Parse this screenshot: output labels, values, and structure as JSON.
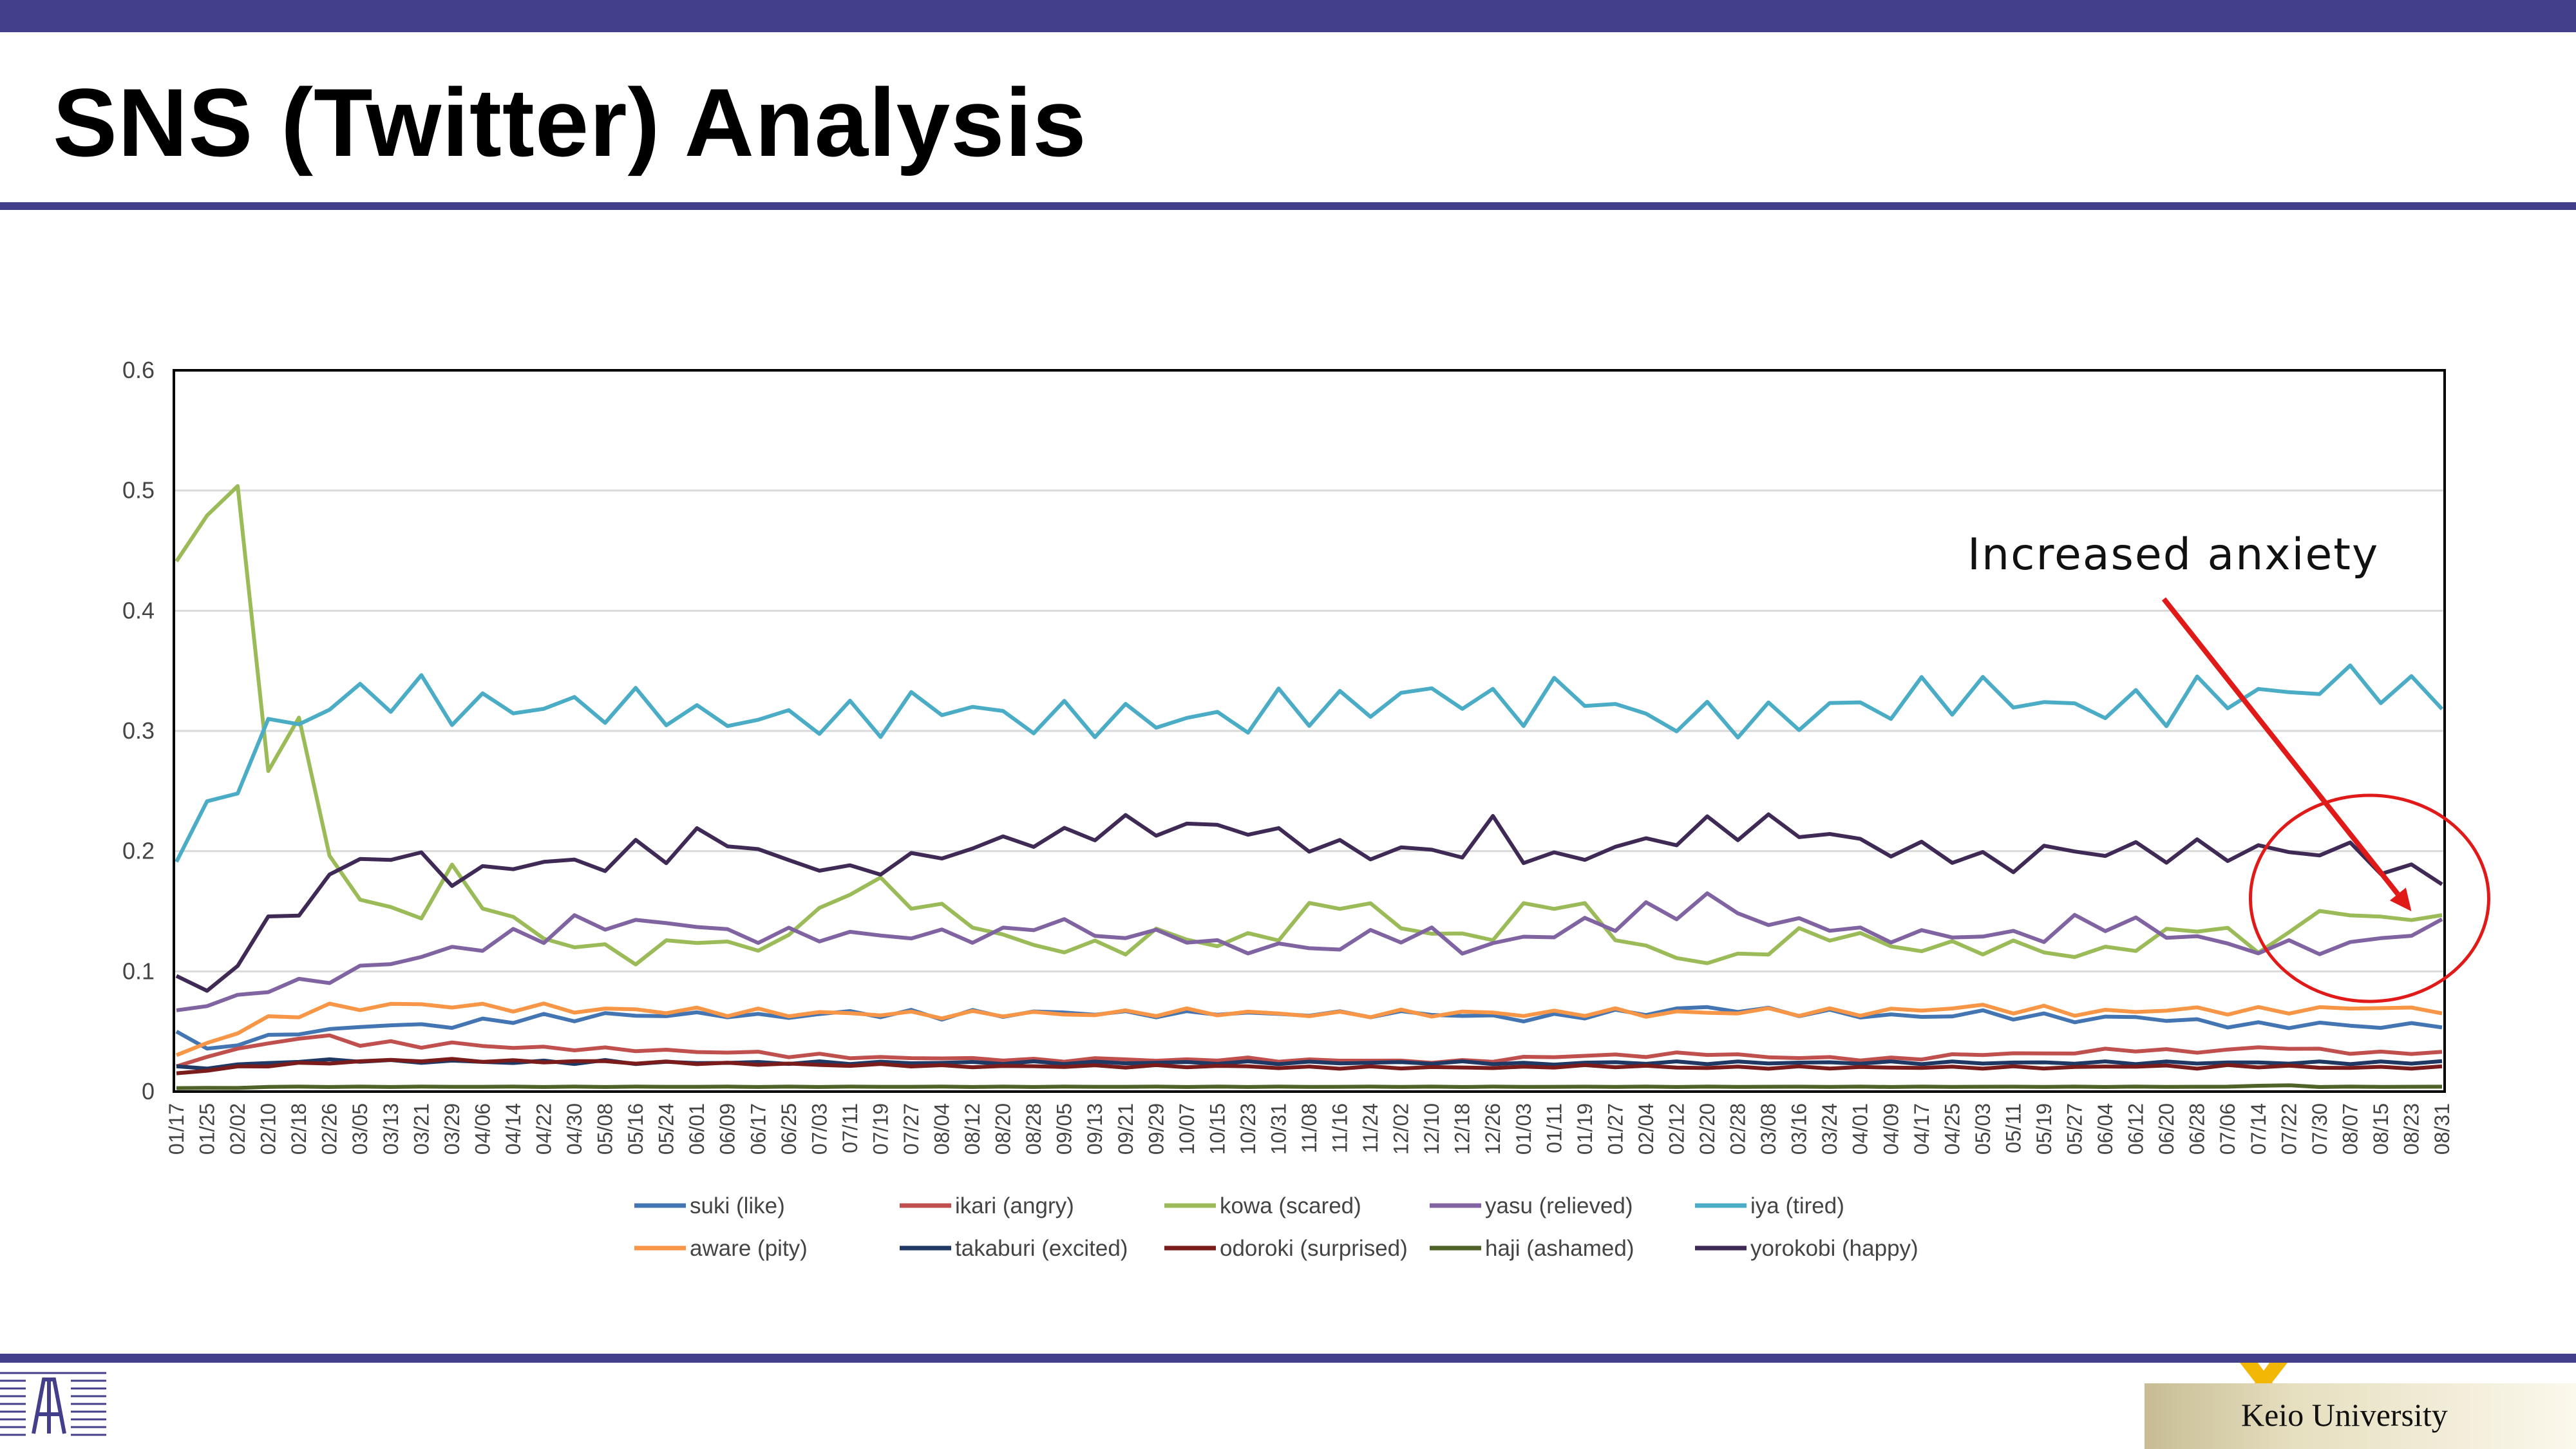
{
  "slide": {
    "title": "SNS (Twitter) Analysis",
    "footer_brand": "Keio University"
  },
  "colors": {
    "bar": "#433f8a",
    "annotation": "#e01919"
  },
  "chart_data": {
    "type": "line",
    "title": "",
    "xlabel": "",
    "ylabel": "",
    "ylim": [
      0,
      0.6
    ],
    "yticks": [
      "0",
      "0.1",
      "0.2",
      "0.3",
      "0.4",
      "0.5",
      "0.6"
    ],
    "grid": true,
    "legend_position": "bottom",
    "x": [
      "01/17",
      "01/25",
      "02/02",
      "02/10",
      "02/18",
      "02/26",
      "03/05",
      "03/13",
      "03/21",
      "03/29",
      "04/06",
      "04/14",
      "04/22",
      "04/30",
      "05/08",
      "05/16",
      "05/24",
      "06/01",
      "06/09",
      "06/17",
      "06/25",
      "07/03",
      "07/11",
      "07/19",
      "07/27",
      "08/04",
      "08/12",
      "08/20",
      "08/28",
      "09/05",
      "09/13",
      "09/21",
      "09/29",
      "10/07",
      "10/15",
      "10/23",
      "10/31",
      "11/08",
      "11/16",
      "11/24",
      "12/02",
      "12/10",
      "12/18",
      "12/26",
      "01/03",
      "01/11",
      "01/19",
      "01/27",
      "02/04",
      "02/12",
      "02/20",
      "02/28",
      "03/08",
      "03/16",
      "03/24",
      "04/01",
      "04/09",
      "04/17",
      "04/25",
      "05/03",
      "05/11",
      "05/19",
      "05/27",
      "06/04",
      "06/12",
      "06/20",
      "06/28",
      "07/06",
      "07/14",
      "07/22",
      "07/30",
      "08/07",
      "08/15",
      "08/23",
      "08/31"
    ],
    "series": [
      {
        "name": "suki (like)",
        "color": "#4475b3",
        "values": [
          0.05,
          0.035,
          0.04,
          0.045,
          0.05,
          0.05,
          0.055,
          0.055,
          0.055,
          0.055,
          0.058,
          0.06,
          0.062,
          0.06,
          0.065,
          0.062,
          0.065,
          0.063,
          0.065,
          0.062,
          0.063,
          0.064,
          0.066,
          0.064,
          0.065,
          0.063,
          0.065,
          0.064,
          0.066,
          0.065,
          0.066,
          0.064,
          0.065,
          0.064,
          0.066,
          0.065,
          0.064,
          0.065,
          0.064,
          0.065,
          0.064,
          0.066,
          0.062,
          0.063,
          0.06,
          0.062,
          0.064,
          0.065,
          0.066,
          0.068,
          0.07,
          0.068,
          0.067,
          0.066,
          0.065,
          0.064,
          0.063,
          0.062,
          0.064,
          0.065,
          0.063,
          0.062,
          0.06,
          0.061,
          0.062,
          0.06,
          0.058,
          0.056,
          0.055,
          0.055,
          0.056,
          0.055,
          0.054,
          0.055,
          0.056
        ]
      },
      {
        "name": "ikari (angry)",
        "color": "#c0504d",
        "values": [
          0.02,
          0.03,
          0.035,
          0.04,
          0.045,
          0.045,
          0.04,
          0.04,
          0.038,
          0.04,
          0.038,
          0.037,
          0.036,
          0.036,
          0.035,
          0.035,
          0.034,
          0.033,
          0.033,
          0.032,
          0.03,
          0.03,
          0.029,
          0.028,
          0.028,
          0.028,
          0.027,
          0.027,
          0.026,
          0.026,
          0.027,
          0.027,
          0.026,
          0.026,
          0.027,
          0.027,
          0.026,
          0.026,
          0.026,
          0.026,
          0.025,
          0.025,
          0.025,
          0.026,
          0.028,
          0.029,
          0.03,
          0.03,
          0.03,
          0.031,
          0.032,
          0.03,
          0.029,
          0.028,
          0.028,
          0.027,
          0.027,
          0.028,
          0.03,
          0.031,
          0.032,
          0.031,
          0.033,
          0.034,
          0.035,
          0.034,
          0.033,
          0.035,
          0.036,
          0.037,
          0.034,
          0.033,
          0.032,
          0.032,
          0.033
        ]
      },
      {
        "name": "kowa (scared)",
        "color": "#9bbb59",
        "values": [
          0.43,
          0.5,
          0.48,
          0.28,
          0.3,
          0.2,
          0.16,
          0.15,
          0.15,
          0.18,
          0.16,
          0.14,
          0.13,
          0.12,
          0.12,
          0.11,
          0.12,
          0.13,
          0.12,
          0.12,
          0.13,
          0.15,
          0.17,
          0.17,
          0.16,
          0.15,
          0.14,
          0.13,
          0.12,
          0.12,
          0.12,
          0.12,
          0.13,
          0.13,
          0.12,
          0.13,
          0.13,
          0.15,
          0.16,
          0.15,
          0.14,
          0.13,
          0.13,
          0.13,
          0.15,
          0.16,
          0.15,
          0.13,
          0.12,
          0.11,
          0.11,
          0.11,
          0.12,
          0.13,
          0.13,
          0.13,
          0.12,
          0.12,
          0.12,
          0.12,
          0.12,
          0.12,
          0.11,
          0.12,
          0.12,
          0.13,
          0.14,
          0.13,
          0.12,
          0.13,
          0.15,
          0.15,
          0.14,
          0.15,
          0.14
        ]
      },
      {
        "name": "yasu (relieved)",
        "color": "#8064a2",
        "values": [
          0.07,
          0.07,
          0.08,
          0.085,
          0.09,
          0.095,
          0.1,
          0.11,
          0.11,
          0.12,
          0.12,
          0.13,
          0.13,
          0.14,
          0.14,
          0.14,
          0.14,
          0.14,
          0.13,
          0.13,
          0.13,
          0.13,
          0.13,
          0.13,
          0.13,
          0.13,
          0.13,
          0.13,
          0.14,
          0.14,
          0.13,
          0.13,
          0.13,
          0.13,
          0.12,
          0.12,
          0.12,
          0.12,
          0.12,
          0.13,
          0.13,
          0.13,
          0.12,
          0.12,
          0.13,
          0.13,
          0.14,
          0.14,
          0.15,
          0.15,
          0.16,
          0.15,
          0.14,
          0.14,
          0.14,
          0.13,
          0.13,
          0.13,
          0.13,
          0.13,
          0.13,
          0.13,
          0.14,
          0.14,
          0.14,
          0.13,
          0.13,
          0.12,
          0.12,
          0.12,
          0.12,
          0.12,
          0.13,
          0.13,
          0.14
        ]
      },
      {
        "name": "iya (tired)",
        "color": "#4bacc6",
        "values": [
          0.2,
          0.23,
          0.26,
          0.3,
          0.31,
          0.32,
          0.33,
          0.33,
          0.33,
          0.32,
          0.32,
          0.32,
          0.32,
          0.32,
          0.32,
          0.32,
          0.32,
          0.31,
          0.31,
          0.31,
          0.31,
          0.31,
          0.31,
          0.31,
          0.32,
          0.32,
          0.32,
          0.31,
          0.31,
          0.31,
          0.31,
          0.31,
          0.31,
          0.31,
          0.31,
          0.31,
          0.32,
          0.32,
          0.32,
          0.32,
          0.33,
          0.33,
          0.33,
          0.32,
          0.32,
          0.33,
          0.33,
          0.32,
          0.31,
          0.31,
          0.31,
          0.31,
          0.31,
          0.31,
          0.32,
          0.32,
          0.32,
          0.33,
          0.33,
          0.33,
          0.33,
          0.32,
          0.32,
          0.32,
          0.32,
          0.32,
          0.33,
          0.33,
          0.33,
          0.33,
          0.34,
          0.34,
          0.34,
          0.33,
          0.33
        ]
      },
      {
        "name": "aware (pity)",
        "color": "#f79646",
        "values": [
          0.03,
          0.04,
          0.05,
          0.06,
          0.065,
          0.07,
          0.07,
          0.072,
          0.072,
          0.072,
          0.07,
          0.07,
          0.07,
          0.068,
          0.068,
          0.068,
          0.067,
          0.067,
          0.066,
          0.066,
          0.065,
          0.065,
          0.065,
          0.065,
          0.064,
          0.064,
          0.064,
          0.065,
          0.065,
          0.064,
          0.065,
          0.065,
          0.066,
          0.066,
          0.066,
          0.065,
          0.065,
          0.064,
          0.064,
          0.065,
          0.065,
          0.065,
          0.065,
          0.066,
          0.064,
          0.065,
          0.066,
          0.066,
          0.065,
          0.065,
          0.066,
          0.066,
          0.067,
          0.066,
          0.066,
          0.066,
          0.067,
          0.068,
          0.07,
          0.07,
          0.068,
          0.068,
          0.066,
          0.066,
          0.067,
          0.068,
          0.068,
          0.067,
          0.067,
          0.068,
          0.068,
          0.07,
          0.07,
          0.068,
          0.068
        ]
      },
      {
        "name": "takaburi (excited)",
        "color": "#1f3864",
        "values": [
          0.02,
          0.02,
          0.022,
          0.024,
          0.025,
          0.026,
          0.026,
          0.025,
          0.025,
          0.025,
          0.025,
          0.024,
          0.025,
          0.024,
          0.025,
          0.024,
          0.024,
          0.024,
          0.024,
          0.024,
          0.024,
          0.024,
          0.024,
          0.024,
          0.024,
          0.024,
          0.024,
          0.024,
          0.024,
          0.024,
          0.024,
          0.024,
          0.024,
          0.024,
          0.024,
          0.024,
          0.024,
          0.024,
          0.024,
          0.024,
          0.024,
          0.024,
          0.024,
          0.024,
          0.023,
          0.023,
          0.024,
          0.024,
          0.024,
          0.024,
          0.024,
          0.024,
          0.024,
          0.024,
          0.024,
          0.024,
          0.024,
          0.024,
          0.024,
          0.024,
          0.024,
          0.024,
          0.024,
          0.024,
          0.024,
          0.024,
          0.024,
          0.024,
          0.024,
          0.024,
          0.024,
          0.024,
          0.024,
          0.024,
          0.025
        ]
      },
      {
        "name": "odoroki (surprised)",
        "color": "#7b1c1c",
        "values": [
          0.015,
          0.018,
          0.02,
          0.022,
          0.023,
          0.024,
          0.025,
          0.026,
          0.026,
          0.026,
          0.026,
          0.025,
          0.025,
          0.025,
          0.025,
          0.024,
          0.024,
          0.024,
          0.023,
          0.023,
          0.023,
          0.022,
          0.022,
          0.022,
          0.022,
          0.021,
          0.021,
          0.021,
          0.021,
          0.021,
          0.021,
          0.021,
          0.021,
          0.021,
          0.021,
          0.021,
          0.02,
          0.02,
          0.02,
          0.02,
          0.02,
          0.02,
          0.02,
          0.02,
          0.02,
          0.021,
          0.021,
          0.021,
          0.021,
          0.02,
          0.02,
          0.02,
          0.02,
          0.02,
          0.02,
          0.02,
          0.02,
          0.02,
          0.02,
          0.02,
          0.02,
          0.02,
          0.02,
          0.021,
          0.021,
          0.021,
          0.02,
          0.021,
          0.021,
          0.021,
          0.02,
          0.02,
          0.02,
          0.02,
          0.02
        ]
      },
      {
        "name": "haji (ashamed)",
        "color": "#4f6228",
        "values": [
          0.003,
          0.003,
          0.003,
          0.004,
          0.004,
          0.004,
          0.004,
          0.004,
          0.004,
          0.004,
          0.004,
          0.004,
          0.004,
          0.004,
          0.004,
          0.004,
          0.004,
          0.004,
          0.004,
          0.004,
          0.004,
          0.004,
          0.004,
          0.004,
          0.004,
          0.004,
          0.004,
          0.004,
          0.004,
          0.004,
          0.004,
          0.004,
          0.004,
          0.004,
          0.004,
          0.004,
          0.004,
          0.004,
          0.004,
          0.004,
          0.004,
          0.004,
          0.004,
          0.004,
          0.004,
          0.004,
          0.004,
          0.004,
          0.004,
          0.004,
          0.004,
          0.004,
          0.004,
          0.004,
          0.004,
          0.004,
          0.004,
          0.004,
          0.004,
          0.004,
          0.004,
          0.004,
          0.004,
          0.004,
          0.004,
          0.004,
          0.004,
          0.004,
          0.005,
          0.005,
          0.004,
          0.004,
          0.004,
          0.004,
          0.004
        ]
      },
      {
        "name": "yorokobi (happy)",
        "color": "#3f2a56",
        "values": [
          0.1,
          0.08,
          0.11,
          0.14,
          0.15,
          0.18,
          0.19,
          0.2,
          0.19,
          0.18,
          0.18,
          0.19,
          0.19,
          0.19,
          0.19,
          0.2,
          0.2,
          0.21,
          0.21,
          0.2,
          0.19,
          0.19,
          0.18,
          0.19,
          0.19,
          0.2,
          0.2,
          0.21,
          0.21,
          0.21,
          0.22,
          0.22,
          0.22,
          0.22,
          0.22,
          0.22,
          0.21,
          0.21,
          0.2,
          0.2,
          0.2,
          0.2,
          0.2,
          0.22,
          0.2,
          0.19,
          0.2,
          0.2,
          0.21,
          0.21,
          0.22,
          0.22,
          0.22,
          0.22,
          0.21,
          0.21,
          0.2,
          0.2,
          0.2,
          0.19,
          0.19,
          0.2,
          0.2,
          0.2,
          0.2,
          0.2,
          0.2,
          0.2,
          0.2,
          0.2,
          0.2,
          0.2,
          0.19,
          0.18,
          0.18
        ]
      }
    ],
    "annotation": {
      "text": "Increased anxiety",
      "target_x": "08/23",
      "target_y": 0.15
    }
  }
}
